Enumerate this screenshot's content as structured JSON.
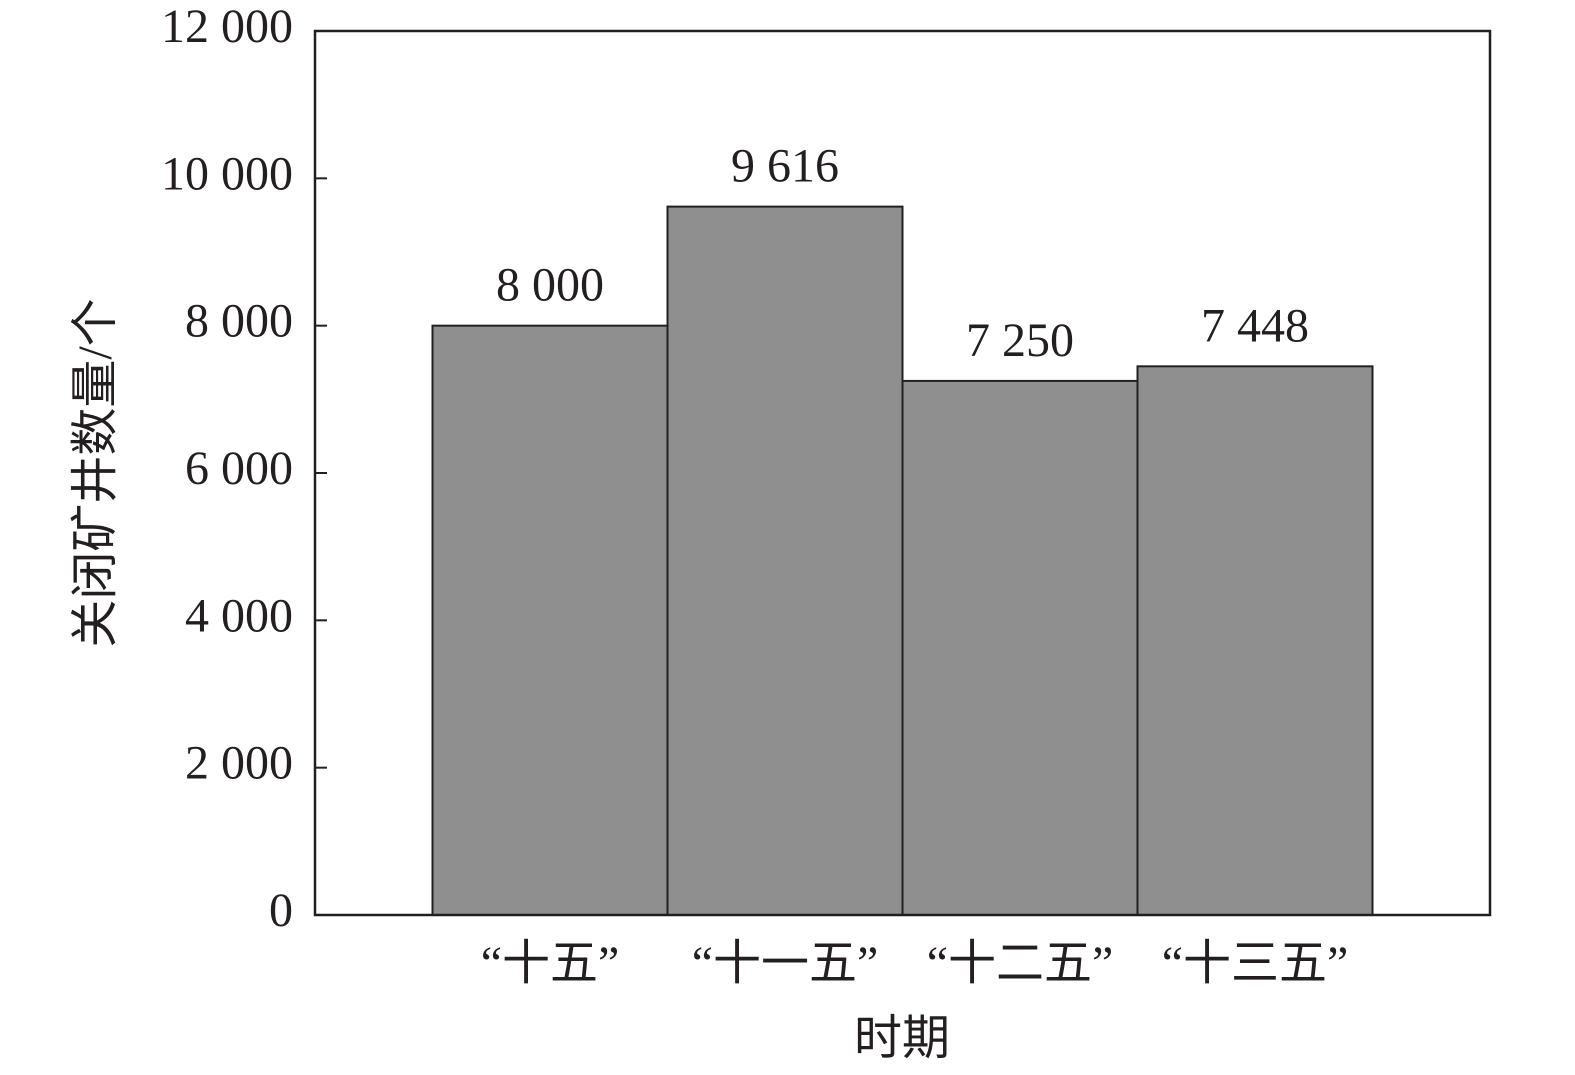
{
  "chart_data": {
    "type": "bar",
    "categories": [
      "“十五”",
      "“十一五”",
      "“十二五”",
      "“十三五”"
    ],
    "values": [
      8000,
      9616,
      7250,
      7448
    ],
    "value_labels": [
      "8 000",
      "9 616",
      "7 250",
      "7 448"
    ],
    "color": "#908f90",
    "xlabel": "时期",
    "ylabel": "关闭矿井数量/个",
    "ylim": [
      0,
      12000
    ],
    "yticks": [
      0,
      {
        "value": 2000,
        "label": "2 000"
      },
      {
        "value": 4000,
        "label": "4 000"
      },
      {
        "value": 6000,
        "label": "6 000"
      },
      {
        "value": 8000,
        "label": "8 000"
      },
      {
        "value": 10000,
        "label": "10 000"
      },
      {
        "value": 12000,
        "label": "12 000"
      }
    ]
  }
}
